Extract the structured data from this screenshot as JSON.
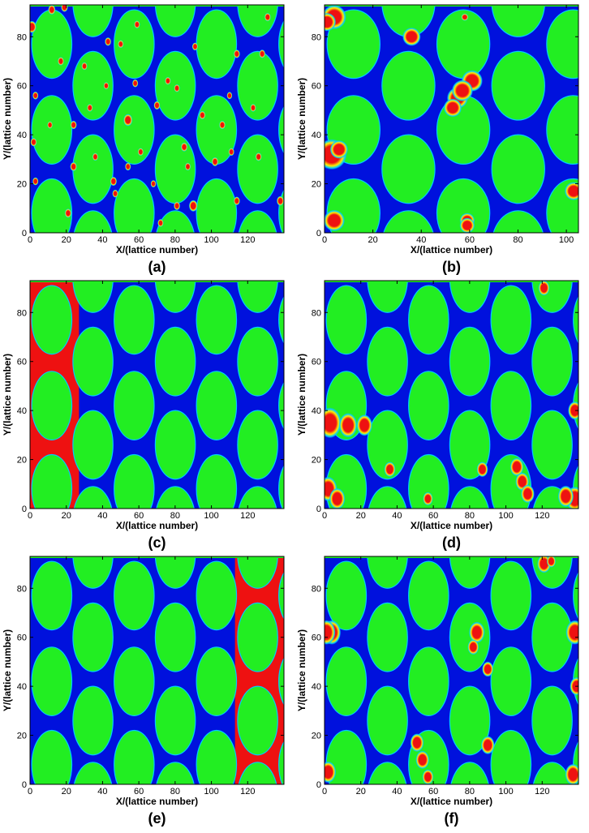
{
  "figure": {
    "x_axis_label": "X/(lattice number)",
    "y_axis_label": "Y/(lattice number)",
    "colors": {
      "solid": "#22ee22",
      "pore": "#0011dd",
      "droplet": "#ee1111",
      "interface_ramp": [
        "#0011dd",
        "#00ccff",
        "#22ee22",
        "#ffee00",
        "#ee1111"
      ]
    }
  },
  "panels": [
    {
      "label": "(a)",
      "xlim": [
        0,
        140
      ],
      "ylim": [
        0,
        93
      ],
      "xticks": [
        "0",
        "20",
        "40",
        "60",
        "80",
        "100",
        "120"
      ],
      "yticks": [
        "0",
        "20",
        "40",
        "60",
        "80"
      ],
      "state": "initial random distribution of small droplets",
      "droplets": [
        [
          1,
          84,
          2
        ],
        [
          12,
          91,
          1.6
        ],
        [
          19,
          92,
          1.5
        ],
        [
          21,
          8,
          1.5
        ],
        [
          17,
          70,
          1.4
        ],
        [
          3,
          56,
          1.3
        ],
        [
          24,
          44,
          1.4
        ],
        [
          24,
          27,
          1.5
        ],
        [
          2,
          37,
          1.4
        ],
        [
          3,
          21,
          1.3
        ],
        [
          30,
          68,
          1.3
        ],
        [
          43,
          78,
          1.4
        ],
        [
          50,
          77,
          1.3
        ],
        [
          54,
          46,
          2
        ],
        [
          36,
          31,
          1.3
        ],
        [
          46,
          21,
          1.5
        ],
        [
          47,
          16,
          1.3
        ],
        [
          54,
          27,
          1.3
        ],
        [
          58,
          61,
          1.3
        ],
        [
          59,
          85,
          1.3
        ],
        [
          70,
          52,
          1.4
        ],
        [
          76,
          62,
          1.3
        ],
        [
          81,
          59,
          1.3
        ],
        [
          85,
          35,
          1.5
        ],
        [
          87,
          27,
          1.3
        ],
        [
          81,
          11,
          1.4
        ],
        [
          90,
          11,
          1.9
        ],
        [
          95,
          48,
          1.4
        ],
        [
          106,
          44,
          1.4
        ],
        [
          102,
          29,
          1.5
        ],
        [
          111,
          33,
          1.3
        ],
        [
          114,
          73,
          1.4
        ],
        [
          128,
          73,
          1.4
        ],
        [
          126,
          31,
          1.4
        ],
        [
          138,
          13,
          1.6
        ],
        [
          114,
          13,
          1.4
        ],
        [
          72,
          4,
          1.3
        ],
        [
          33,
          51,
          1.3
        ],
        [
          61,
          33,
          1.3
        ],
        [
          91,
          76,
          1.3
        ],
        [
          123,
          51,
          1.3
        ],
        [
          11,
          44,
          1.2
        ],
        [
          42,
          60,
          1.2
        ],
        [
          131,
          88,
          1.4
        ],
        [
          110,
          56,
          1.2
        ],
        [
          68,
          20,
          1.2
        ]
      ]
    },
    {
      "label": "(b)",
      "xlim": [
        0,
        105
      ],
      "ylim": [
        0,
        93
      ],
      "xticks": [
        "0",
        "20",
        "40",
        "60",
        "80",
        "100"
      ],
      "yticks": [
        "0",
        "20",
        "40",
        "60",
        "80"
      ],
      "state": "coalesced droplets, narrower domain",
      "droplets": [
        [
          4,
          88,
          4
        ],
        [
          1,
          86,
          3
        ],
        [
          36,
          80,
          3
        ],
        [
          58,
          88,
          1.2
        ],
        [
          55,
          55,
          3.5
        ],
        [
          61,
          62,
          3.5
        ],
        [
          57,
          58,
          3.5
        ],
        [
          53,
          51,
          3
        ],
        [
          3,
          32,
          5
        ],
        [
          6,
          34,
          3
        ],
        [
          4,
          5,
          3.5
        ],
        [
          59,
          5,
          2.5
        ],
        [
          59,
          3,
          2.5
        ],
        [
          103,
          17,
          3
        ]
      ]
    },
    {
      "label": "(c)",
      "xlim": [
        0,
        140
      ],
      "ylim": [
        0,
        93
      ],
      "xticks": [
        "0",
        "20",
        "40",
        "60",
        "80",
        "100",
        "120"
      ],
      "yticks": [
        "0",
        "20",
        "40",
        "60",
        "80"
      ],
      "state": "wetting phase accumulated along left boundary",
      "droplets": []
    },
    {
      "label": "(d)",
      "xlim": [
        0,
        140
      ],
      "ylim": [
        0,
        93
      ],
      "xticks": [
        "0",
        "20",
        "40",
        "60",
        "80",
        "100",
        "120"
      ],
      "yticks": [
        "0",
        "20",
        "40",
        "60",
        "80"
      ],
      "state": "several droplets trapped in pore throats",
      "droplets": [
        [
          3,
          35,
          5
        ],
        [
          13,
          34,
          4
        ],
        [
          22,
          34,
          3.5
        ],
        [
          2,
          8,
          4
        ],
        [
          7,
          4,
          3.5
        ],
        [
          36,
          16,
          2.5
        ],
        [
          57,
          4,
          2.2
        ],
        [
          87,
          16,
          2.5
        ],
        [
          106,
          17,
          3
        ],
        [
          109,
          11,
          3
        ],
        [
          112,
          6,
          3
        ],
        [
          121,
          90,
          2.5
        ],
        [
          138,
          40,
          3
        ],
        [
          138,
          4,
          4
        ],
        [
          133,
          5,
          3.5
        ]
      ]
    },
    {
      "label": "(e)",
      "xlim": [
        0,
        140
      ],
      "ylim": [
        0,
        93
      ],
      "xticks": [
        "0",
        "20",
        "40",
        "60",
        "80",
        "100",
        "120"
      ],
      "yticks": [
        "0",
        "20",
        "40",
        "60",
        "80"
      ],
      "state": "wetting phase accumulated along right boundary",
      "droplets": []
    },
    {
      "label": "(f)",
      "xlim": [
        0,
        140
      ],
      "ylim": [
        0,
        93
      ],
      "xticks": [
        "0",
        "20",
        "40",
        "60",
        "80",
        "100",
        "120"
      ],
      "yticks": [
        "0",
        "20",
        "40",
        "60",
        "80"
      ],
      "state": "scattered droplets at walls and throats",
      "droplets": [
        [
          4,
          62,
          4
        ],
        [
          1,
          62,
          4
        ],
        [
          84,
          62,
          3.5
        ],
        [
          82,
          56,
          2.5
        ],
        [
          90,
          47,
          2.5
        ],
        [
          90,
          16,
          3
        ],
        [
          51,
          17,
          3
        ],
        [
          54,
          10,
          3
        ],
        [
          57,
          3,
          2.5
        ],
        [
          2,
          5,
          3.5
        ],
        [
          121,
          90,
          3
        ],
        [
          125,
          91,
          2
        ],
        [
          138,
          62,
          4
        ],
        [
          139,
          40,
          3
        ],
        [
          137,
          4,
          3.5
        ]
      ]
    }
  ]
}
